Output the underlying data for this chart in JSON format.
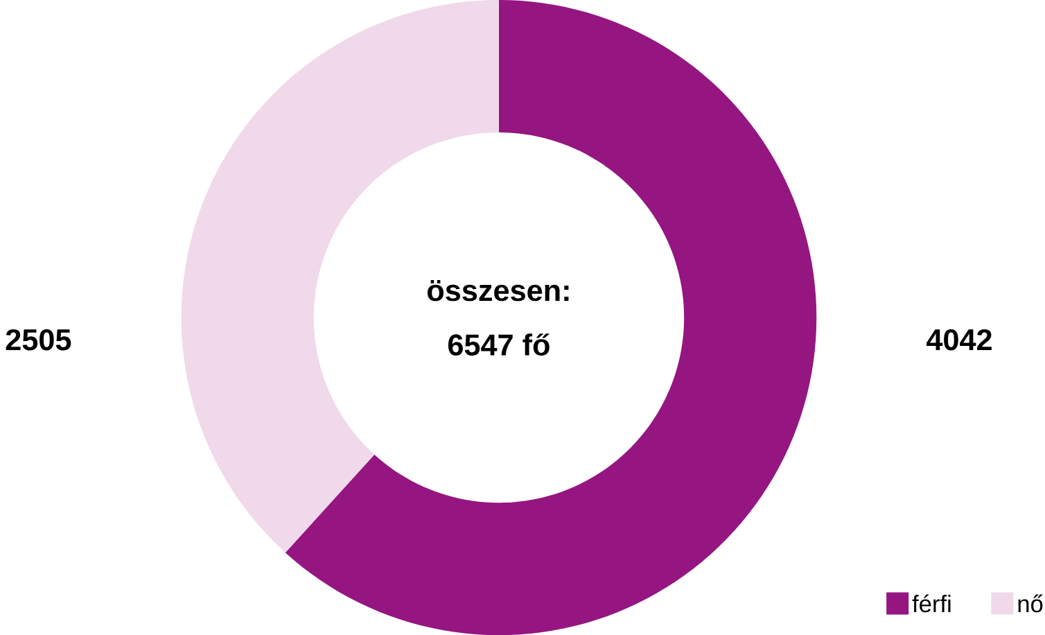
{
  "chart_data": {
    "type": "donut",
    "categories": [
      "férfi",
      "nő"
    ],
    "values": [
      4042,
      2505
    ],
    "colors": [
      "#951680",
      "#f0d9ea"
    ],
    "data_labels": true,
    "legend": "bottom right",
    "annotations": [
      "összesen:",
      "6547 fő"
    ]
  }
}
